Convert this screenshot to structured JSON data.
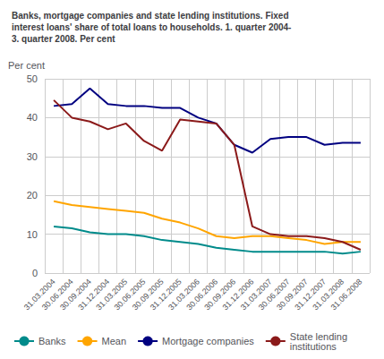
{
  "chart_data": {
    "type": "line",
    "title": "Banks, mortgage companies and state lending institutions. Fixed\ninterest loans' share of total loans to households. 1. quarter 2004-\n3. quarter 2008. Per cent",
    "ylabel": "Per cent",
    "categories": [
      "31.03.2004",
      "30.06.2004",
      "30.09.2004",
      "31.12.2004",
      "31.03.2005",
      "30.06.2005",
      "30.09.2005",
      "31.12.2005",
      "31.03.2006",
      "30.06.2006",
      "30.09.2006",
      "31.12.2006",
      "31.03.2007",
      "30.06.2007",
      "30.09.2007",
      "31.12.2007",
      "31.03.2008",
      "31.06.2008"
    ],
    "series": [
      {
        "name": "Banks",
        "color": "#008B8B",
        "values": [
          12.0,
          11.5,
          10.5,
          10.0,
          10.0,
          9.5,
          8.5,
          8.0,
          7.5,
          6.5,
          6.0,
          5.5,
          5.5,
          5.5,
          5.5,
          5.5,
          5.0,
          5.5
        ]
      },
      {
        "name": "Mean",
        "color": "#FFA500",
        "values": [
          18.5,
          17.5,
          17.0,
          16.5,
          16.0,
          15.5,
          14.0,
          13.0,
          11.5,
          9.5,
          9.0,
          9.5,
          9.5,
          9.0,
          8.5,
          7.5,
          8.0,
          8.0
        ]
      },
      {
        "name": "Mortgage companies",
        "color": "#000080",
        "values": [
          43.0,
          43.5,
          47.5,
          43.5,
          43.0,
          43.0,
          42.5,
          42.5,
          40.0,
          38.5,
          33.0,
          31.0,
          34.5,
          35.0,
          35.0,
          33.0,
          33.5,
          33.5
        ]
      },
      {
        "name": "State lending\ninstitutions",
        "color": "#8B1A1A",
        "values": [
          44.5,
          40.0,
          39.0,
          37.0,
          38.5,
          34.0,
          31.5,
          39.5,
          39.0,
          38.5,
          33.0,
          12.0,
          10.0,
          9.5,
          9.5,
          9.0,
          8.0,
          6.0
        ]
      }
    ],
    "ylim": [
      0,
      50
    ],
    "yticks": [
      0,
      10,
      20,
      30,
      40,
      50
    ],
    "grid": true,
    "legend": "lower left"
  }
}
